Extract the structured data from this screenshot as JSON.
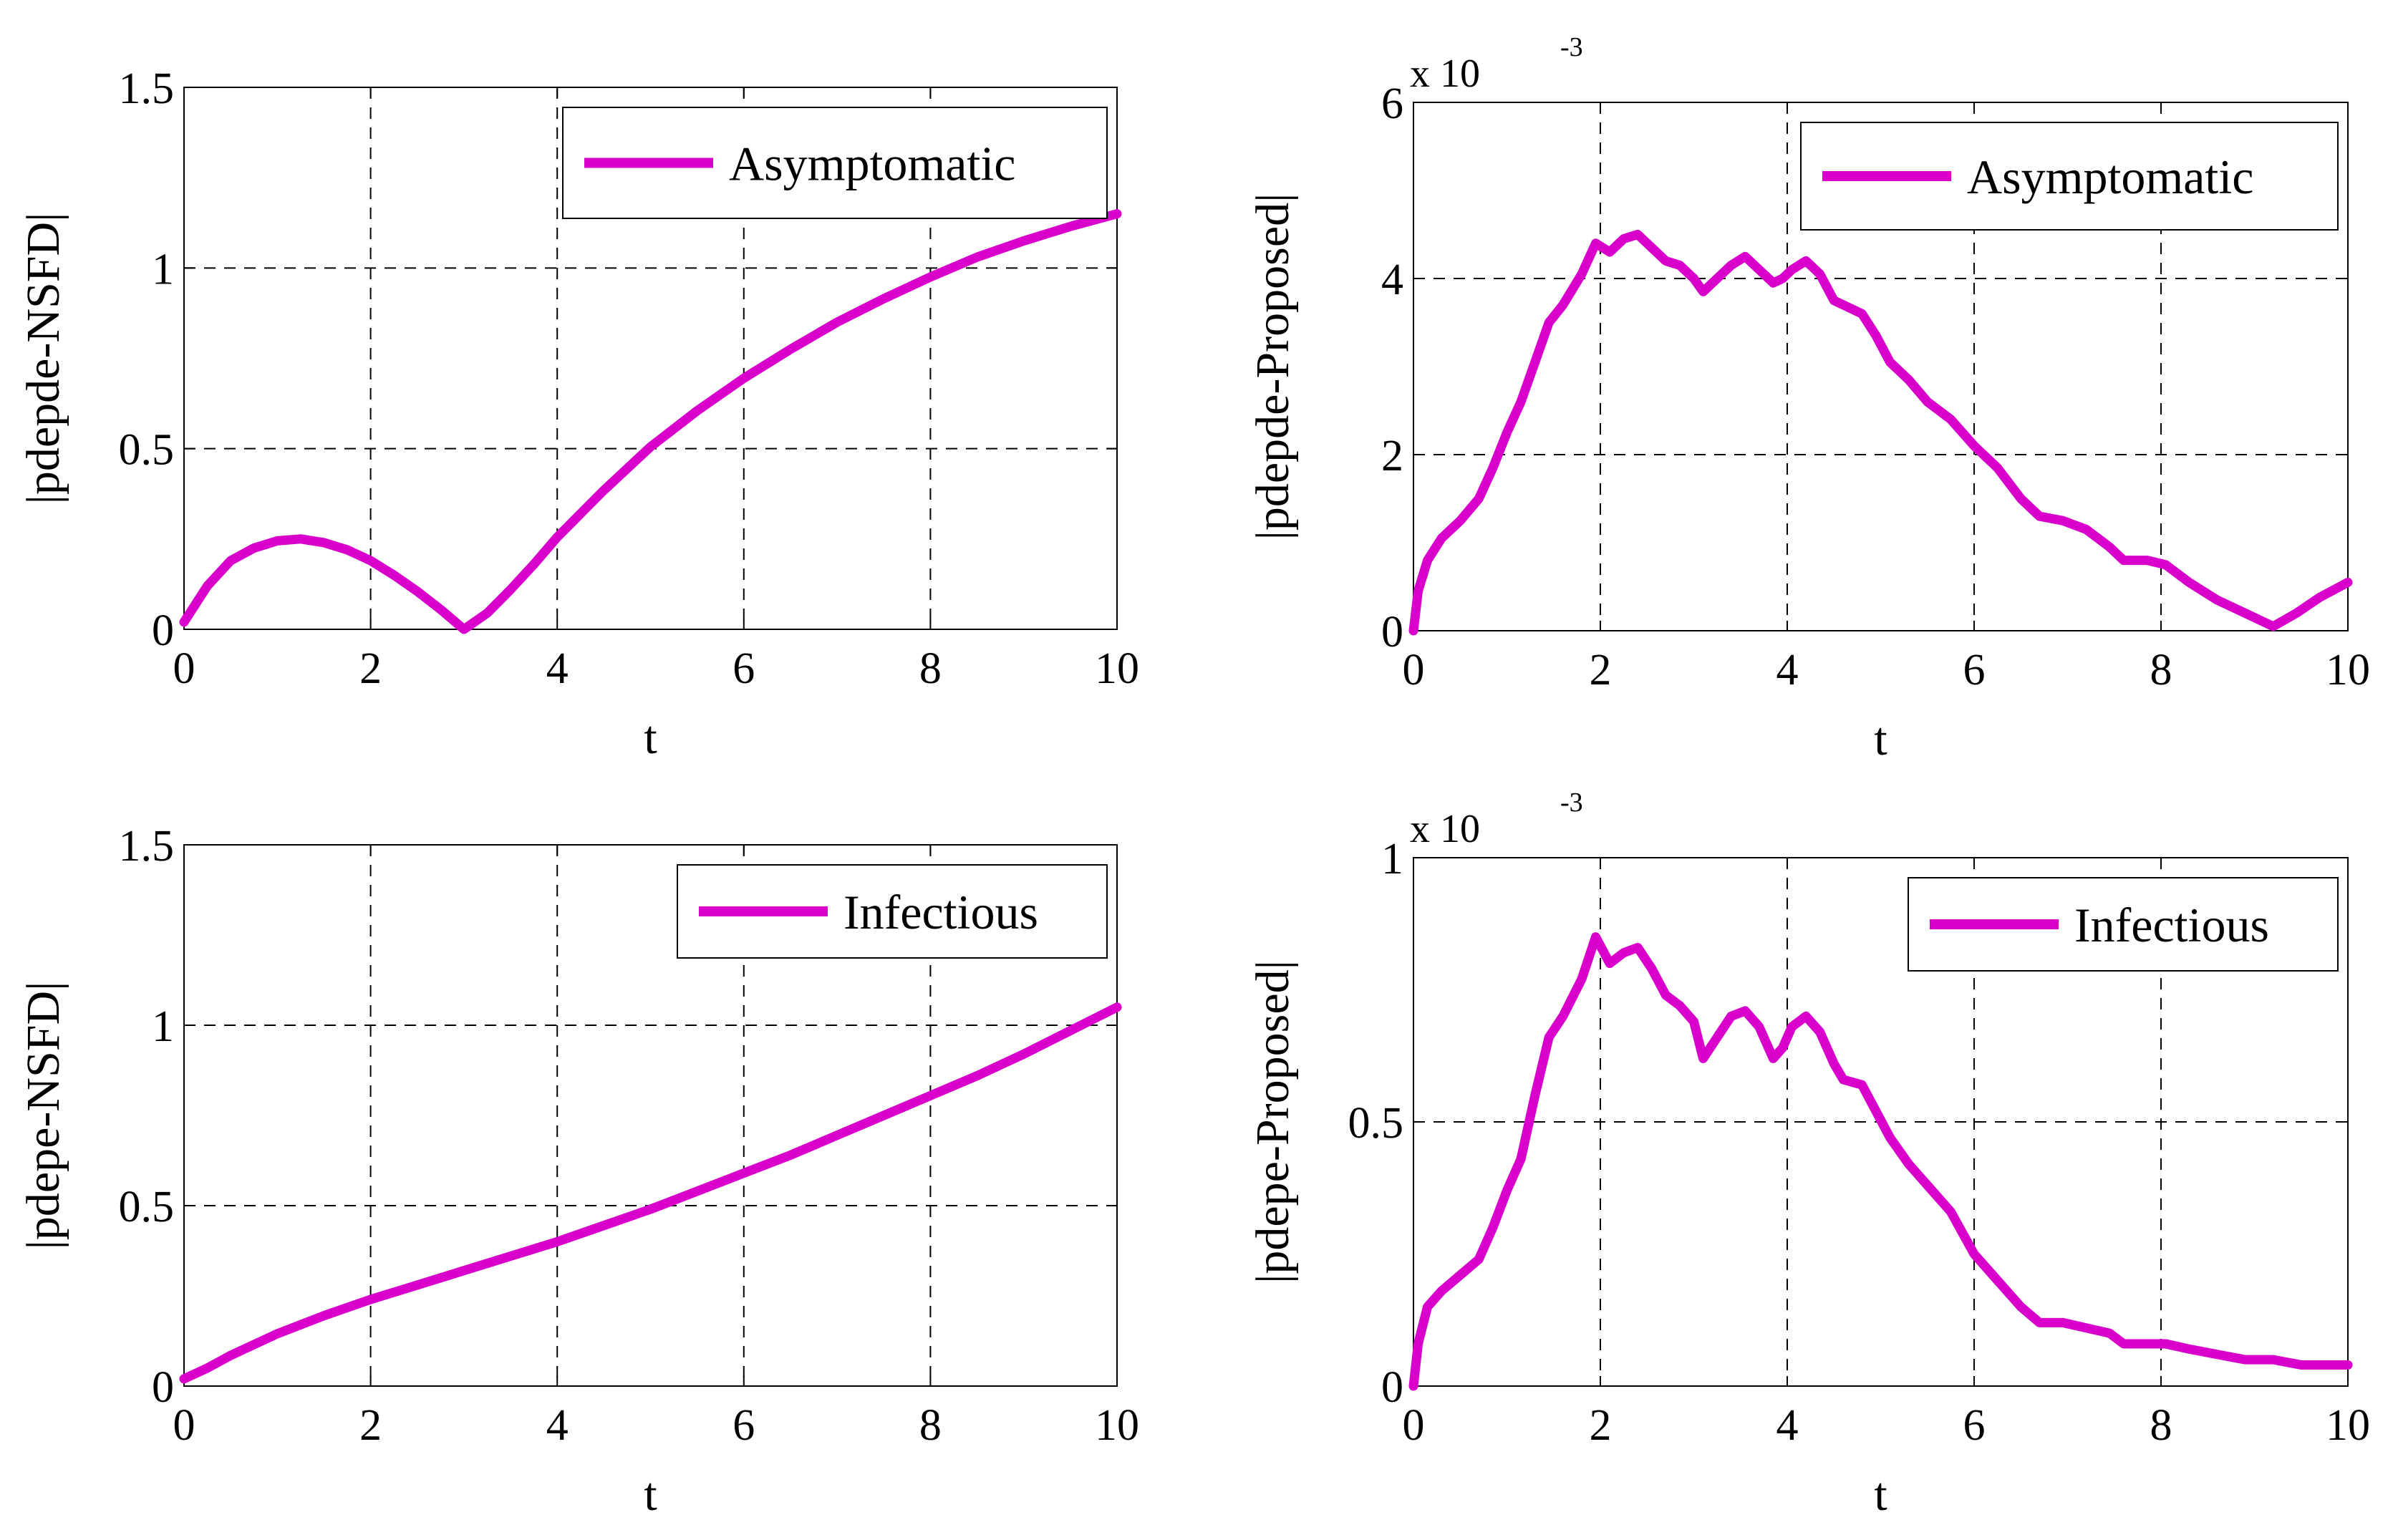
{
  "figure": {
    "line_color": "#d900cc",
    "grid_color": "#000000"
  },
  "chart_data": [
    {
      "id": "top-left",
      "type": "line",
      "xlabel": "t",
      "ylabel": "|pdepde-NSFD|",
      "xlim": [
        0,
        10
      ],
      "ylim": [
        0,
        1.5
      ],
      "xticks": [
        0,
        2,
        4,
        6,
        8,
        10
      ],
      "xtick_labels": [
        "0",
        "2",
        "4",
        "6",
        "8",
        "10"
      ],
      "yticks": [
        0,
        0.5,
        1,
        1.5
      ],
      "ytick_labels": [
        "0",
        "0.5",
        "1",
        "1.5"
      ],
      "scale_label": "",
      "legend": "Asymptomatic",
      "legend_position": "top-right",
      "grid": true,
      "series": [
        {
          "name": "Asymptomatic",
          "x": [
            0,
            0.25,
            0.5,
            0.75,
            1.0,
            1.25,
            1.5,
            1.75,
            2.0,
            2.25,
            2.5,
            2.75,
            3.0,
            3.25,
            3.5,
            3.75,
            4.0,
            4.5,
            5.0,
            5.5,
            6.0,
            6.5,
            7.0,
            7.5,
            8.0,
            8.5,
            9.0,
            9.5,
            10.0
          ],
          "y": [
            0.02,
            0.12,
            0.19,
            0.225,
            0.245,
            0.25,
            0.24,
            0.22,
            0.19,
            0.15,
            0.105,
            0.055,
            0.0,
            0.045,
            0.11,
            0.18,
            0.255,
            0.385,
            0.505,
            0.605,
            0.695,
            0.775,
            0.85,
            0.915,
            0.975,
            1.03,
            1.075,
            1.115,
            1.15
          ]
        }
      ]
    },
    {
      "id": "top-right",
      "type": "line",
      "xlabel": "t",
      "ylabel": "|pdepde-Proposed|",
      "xlim": [
        0,
        10
      ],
      "ylim": [
        0,
        6
      ],
      "xticks": [
        0,
        2,
        4,
        6,
        8,
        10
      ],
      "xtick_labels": [
        "0",
        "2",
        "4",
        "6",
        "8",
        "10"
      ],
      "yticks": [
        0,
        2,
        4,
        6
      ],
      "ytick_labels": [
        "0",
        "2",
        "4",
        "6"
      ],
      "scale_label": "x 10",
      "scale_exponent": "-3",
      "legend": "Asymptomatic",
      "legend_position": "top-right",
      "grid": true,
      "series": [
        {
          "name": "Asymptomatic",
          "x": [
            0,
            0.05,
            0.15,
            0.3,
            0.5,
            0.7,
            0.85,
            1.0,
            1.15,
            1.3,
            1.45,
            1.6,
            1.8,
            1.95,
            2.1,
            2.25,
            2.4,
            2.55,
            2.7,
            2.85,
            3.0,
            3.1,
            3.25,
            3.4,
            3.55,
            3.7,
            3.85,
            3.95,
            4.05,
            4.2,
            4.35,
            4.5,
            4.6,
            4.8,
            4.95,
            5.1,
            5.3,
            5.5,
            5.75,
            6.0,
            6.25,
            6.5,
            6.7,
            6.95,
            7.2,
            7.45,
            7.6,
            7.85,
            8.05,
            8.3,
            8.6,
            8.9,
            9.1,
            9.2,
            9.45,
            9.7,
            10.0
          ],
          "y": [
            0.0,
            0.45,
            0.8,
            1.05,
            1.25,
            1.5,
            1.85,
            2.25,
            2.6,
            3.05,
            3.5,
            3.7,
            4.05,
            4.4,
            4.3,
            4.45,
            4.5,
            4.35,
            4.2,
            4.15,
            4.0,
            3.85,
            4.0,
            4.15,
            4.25,
            4.1,
            3.95,
            4.0,
            4.1,
            4.2,
            4.05,
            3.75,
            3.7,
            3.6,
            3.35,
            3.05,
            2.85,
            2.6,
            2.4,
            2.1,
            1.85,
            1.5,
            1.3,
            1.25,
            1.15,
            0.95,
            0.8,
            0.8,
            0.75,
            0.55,
            0.35,
            0.2,
            0.1,
            0.05,
            0.2,
            0.38,
            0.55
          ]
        }
      ]
    },
    {
      "id": "bottom-left",
      "type": "line",
      "xlabel": "t",
      "ylabel": "|pdepe-NSFD|",
      "xlim": [
        0,
        10
      ],
      "ylim": [
        0,
        1.5
      ],
      "xticks": [
        0,
        2,
        4,
        6,
        8,
        10
      ],
      "xtick_labels": [
        "0",
        "2",
        "4",
        "6",
        "8",
        "10"
      ],
      "yticks": [
        0,
        0.5,
        1,
        1.5
      ],
      "ytick_labels": [
        "0",
        "0.5",
        "1",
        "1.5"
      ],
      "scale_label": "",
      "legend": "Infectious",
      "legend_position": "top-right",
      "grid": true,
      "series": [
        {
          "name": "Infectious",
          "x": [
            0,
            0.25,
            0.5,
            0.75,
            1.0,
            1.5,
            2.0,
            2.5,
            3.0,
            3.5,
            4.0,
            4.5,
            5.0,
            5.5,
            6.0,
            6.5,
            7.0,
            7.5,
            8.0,
            8.5,
            9.0,
            9.5,
            10.0
          ],
          "y": [
            0.02,
            0.05,
            0.085,
            0.115,
            0.145,
            0.195,
            0.24,
            0.28,
            0.32,
            0.36,
            0.4,
            0.445,
            0.49,
            0.54,
            0.59,
            0.64,
            0.695,
            0.75,
            0.805,
            0.86,
            0.92,
            0.985,
            1.05
          ]
        }
      ]
    },
    {
      "id": "bottom-right",
      "type": "line",
      "xlabel": "t",
      "ylabel": "|pdepe-Proposed|",
      "xlim": [
        0,
        10
      ],
      "ylim": [
        0,
        1
      ],
      "xticks": [
        0,
        2,
        4,
        6,
        8,
        10
      ],
      "xtick_labels": [
        "0",
        "2",
        "4",
        "6",
        "8",
        "10"
      ],
      "yticks": [
        0,
        0.5,
        1
      ],
      "ytick_labels": [
        "0",
        "0.5",
        "1"
      ],
      "scale_label": "x 10",
      "scale_exponent": "-3",
      "legend": "Infectious",
      "legend_position": "top-right",
      "grid": true,
      "series": [
        {
          "name": "Infectious",
          "x": [
            0,
            0.05,
            0.15,
            0.3,
            0.5,
            0.7,
            0.85,
            1.0,
            1.15,
            1.3,
            1.45,
            1.6,
            1.8,
            1.95,
            2.1,
            2.25,
            2.4,
            2.55,
            2.7,
            2.85,
            3.0,
            3.1,
            3.25,
            3.4,
            3.55,
            3.7,
            3.85,
            3.95,
            4.05,
            4.2,
            4.35,
            4.5,
            4.6,
            4.8,
            4.95,
            5.1,
            5.3,
            5.5,
            5.75,
            6.0,
            6.25,
            6.5,
            6.7,
            6.95,
            7.2,
            7.45,
            7.6,
            7.85,
            8.05,
            8.3,
            8.6,
            8.9,
            9.2,
            9.5,
            9.7,
            10.0
          ],
          "y": [
            0.0,
            0.08,
            0.15,
            0.18,
            0.21,
            0.24,
            0.3,
            0.37,
            0.43,
            0.55,
            0.66,
            0.7,
            0.77,
            0.85,
            0.8,
            0.82,
            0.83,
            0.79,
            0.74,
            0.72,
            0.69,
            0.62,
            0.66,
            0.7,
            0.71,
            0.68,
            0.62,
            0.64,
            0.68,
            0.7,
            0.67,
            0.61,
            0.58,
            0.57,
            0.52,
            0.47,
            0.42,
            0.38,
            0.33,
            0.25,
            0.2,
            0.15,
            0.12,
            0.12,
            0.11,
            0.1,
            0.08,
            0.08,
            0.08,
            0.07,
            0.06,
            0.05,
            0.05,
            0.04,
            0.04,
            0.04
          ]
        }
      ]
    }
  ]
}
